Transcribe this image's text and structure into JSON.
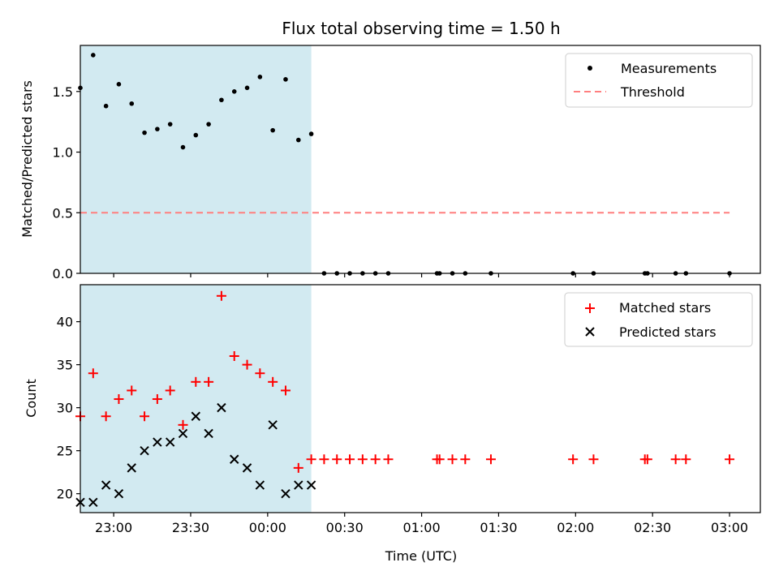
{
  "chart_data": [
    {
      "type": "scatter",
      "title": "Flux total observing time = 1.50 h",
      "ylabel": "Matched/Predicted stars",
      "xlabel": "",
      "x_range": [
        "22:47",
        "03:12"
      ],
      "ylim": [
        0,
        1.88
      ],
      "yticks": [
        0.0,
        0.5,
        1.0,
        1.5
      ],
      "ytick_labels": [
        "0.0",
        "0.5",
        "1.0",
        "1.5"
      ],
      "shaded_interval": {
        "start": "22:47",
        "end": "00:17",
        "color": "#add8e6"
      },
      "legend_position": "top-right",
      "series": [
        {
          "name": "Measurements",
          "marker": "dot",
          "color": "#000000",
          "x": [
            "22:47",
            "22:52",
            "22:57",
            "23:02",
            "23:07",
            "23:12",
            "23:17",
            "23:22",
            "23:27",
            "23:32",
            "23:37",
            "23:42",
            "23:47",
            "23:52",
            "23:57",
            "00:02",
            "00:07",
            "00:12",
            "00:17",
            "00:22",
            "00:27",
            "00:32",
            "00:37",
            "00:42",
            "00:47",
            "01:06",
            "01:07",
            "01:12",
            "01:17",
            "01:27",
            "01:59",
            "02:07",
            "02:27",
            "02:28",
            "02:39",
            "02:43",
            "03:00"
          ],
          "y": [
            1.53,
            1.8,
            1.38,
            1.56,
            1.4,
            1.16,
            1.19,
            1.23,
            1.04,
            1.14,
            1.23,
            1.43,
            1.5,
            1.53,
            1.62,
            1.18,
            1.6,
            1.1,
            1.15,
            0,
            0,
            0,
            0,
            0,
            0,
            0,
            0,
            0,
            0,
            0,
            0,
            0,
            0,
            0,
            0,
            0,
            0
          ]
        },
        {
          "name": "Threshold",
          "marker": "dashed-line",
          "color": "#ff7f7f",
          "x": [
            "22:47",
            "03:00"
          ],
          "y": [
            0.5,
            0.5
          ]
        }
      ]
    },
    {
      "type": "scatter",
      "title": "",
      "ylabel": "Count",
      "xlabel": "Time (UTC)",
      "x_range": [
        "22:47",
        "03:12"
      ],
      "xticks": [
        "23:00",
        "23:30",
        "00:00",
        "00:30",
        "01:00",
        "01:30",
        "02:00",
        "02:30",
        "03:00"
      ],
      "ylim": [
        17.8,
        44.3
      ],
      "yticks": [
        20,
        25,
        30,
        35,
        40
      ],
      "ytick_labels": [
        "20",
        "25",
        "30",
        "35",
        "40"
      ],
      "shaded_interval": {
        "start": "22:47",
        "end": "00:17",
        "color": "#add8e6"
      },
      "legend_position": "top-right",
      "series": [
        {
          "name": "Matched stars",
          "marker": "plus",
          "color": "#ff0000",
          "x": [
            "22:47",
            "22:52",
            "22:57",
            "23:02",
            "23:07",
            "23:12",
            "23:17",
            "23:22",
            "23:27",
            "23:32",
            "23:37",
            "23:42",
            "23:47",
            "23:52",
            "23:57",
            "00:02",
            "00:07",
            "00:12",
            "00:17",
            "00:22",
            "00:27",
            "00:32",
            "00:37",
            "00:42",
            "00:47",
            "01:06",
            "01:07",
            "01:12",
            "01:17",
            "01:27",
            "01:59",
            "02:07",
            "02:27",
            "02:28",
            "02:39",
            "02:43",
            "03:00"
          ],
          "y": [
            29,
            34,
            29,
            31,
            32,
            29,
            31,
            32,
            28,
            33,
            33,
            43,
            36,
            35,
            34,
            33,
            32,
            23,
            24,
            24,
            24,
            24,
            24,
            24,
            24,
            24,
            24,
            24,
            24,
            24,
            24,
            24,
            24,
            24,
            24,
            24,
            24
          ]
        },
        {
          "name": "Predicted stars",
          "marker": "x",
          "color": "#000000",
          "x": [
            "22:47",
            "22:52",
            "22:57",
            "23:02",
            "23:07",
            "23:12",
            "23:17",
            "23:22",
            "23:27",
            "23:32",
            "23:37",
            "23:42",
            "23:47",
            "23:52",
            "23:57",
            "00:02",
            "00:07",
            "00:12",
            "00:17"
          ],
          "y": [
            19,
            19,
            21,
            20,
            23,
            25,
            26,
            26,
            27,
            29,
            27,
            30,
            24,
            23,
            21,
            28,
            20,
            21,
            21
          ]
        }
      ]
    }
  ]
}
